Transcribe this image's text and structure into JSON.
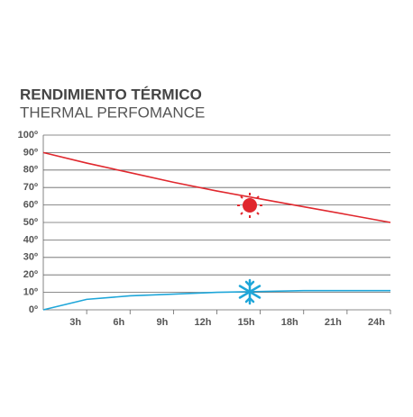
{
  "chart_data": {
    "type": "line",
    "title": "RENDIMIENTO TÉRMICO",
    "subtitle": "THERMAL PERFOMANCE",
    "x": [
      0,
      3,
      6,
      9,
      12,
      15,
      18,
      21,
      24
    ],
    "series": [
      {
        "name": "hot",
        "color": "#e0282e",
        "values": [
          90,
          84,
          78.5,
          73,
          68,
          63.5,
          59,
          54.5,
          50
        ]
      },
      {
        "name": "cold",
        "color": "#1ea6d9",
        "values": [
          0,
          6,
          8,
          9,
          10,
          10.5,
          11,
          11,
          11
        ]
      }
    ],
    "xlim": [
      0,
      24
    ],
    "xticks": [
      {
        "value": 3,
        "label": "3h"
      },
      {
        "value": 6,
        "label": "6h"
      },
      {
        "value": 9,
        "label": "9h"
      },
      {
        "value": 12,
        "label": "12h"
      },
      {
        "value": 15,
        "label": "15h"
      },
      {
        "value": 18,
        "label": "18h"
      },
      {
        "value": 21,
        "label": "21h"
      },
      {
        "value": 24,
        "label": "24h"
      }
    ],
    "ylim": [
      0,
      100
    ],
    "yticks": [
      {
        "value": 0,
        "label": "0º"
      },
      {
        "value": 10,
        "label": "10º"
      },
      {
        "value": 20,
        "label": "20º"
      },
      {
        "value": 30,
        "label": "30º"
      },
      {
        "value": 40,
        "label": "40º"
      },
      {
        "value": 50,
        "label": "50º"
      },
      {
        "value": 60,
        "label": "60º"
      },
      {
        "value": 70,
        "label": "70º"
      },
      {
        "value": 80,
        "label": "80º"
      },
      {
        "value": 90,
        "label": "90º"
      },
      {
        "value": 100,
        "label": "100º"
      }
    ],
    "grid": true
  }
}
